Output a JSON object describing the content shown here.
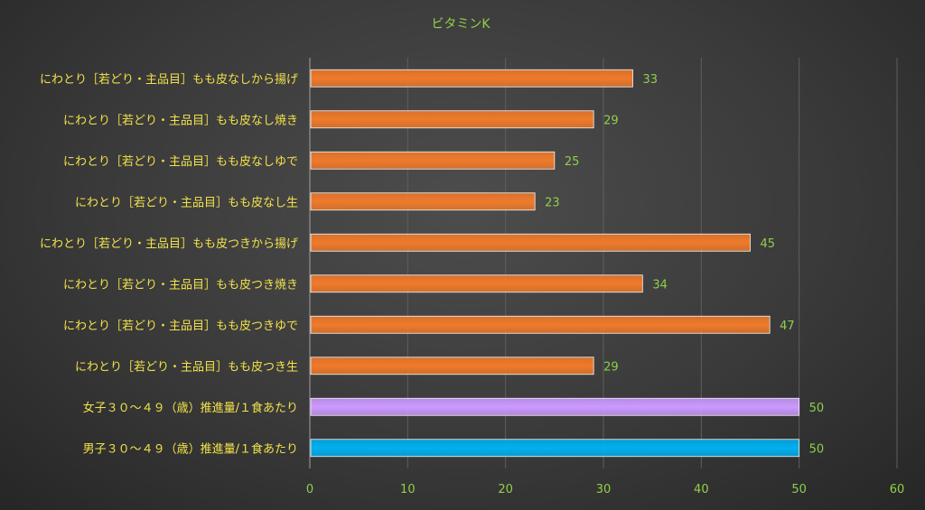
{
  "chart_data": {
    "type": "bar",
    "orientation": "horizontal",
    "title": "ビタミンK",
    "categories": [
      "にわとり［若どり・主品目］もも皮なしから揚げ",
      "にわとり［若どり・主品目］もも皮なし焼き",
      "にわとり［若どり・主品目］もも皮なしゆで",
      "にわとり［若どり・主品目］もも皮なし生",
      "にわとり［若どり・主品目］もも皮つきから揚げ",
      "にわとり［若どり・主品目］もも皮つき焼き",
      "にわとり［若どり・主品目］もも皮つきゆで",
      "にわとり［若どり・主品目］もも皮つき生",
      "女子３０～４９（歳）推進量/１食あたり",
      "男子３０～４９（歳）推進量/１食あたり"
    ],
    "values": [
      33,
      29,
      25,
      23,
      45,
      34,
      47,
      29,
      50,
      50
    ],
    "bar_colors": [
      "#f07a2a",
      "#f07a2a",
      "#f07a2a",
      "#f07a2a",
      "#f07a2a",
      "#f07a2a",
      "#f07a2a",
      "#f07a2a",
      "#cc99ff",
      "#00b0f0"
    ],
    "xlim": [
      0,
      60
    ],
    "xticks": [
      "0",
      "10",
      "20",
      "30",
      "40",
      "50",
      "60"
    ],
    "grid": "vertical",
    "data_labels": [
      "33",
      "29",
      "25",
      "23",
      "45",
      "34",
      "47",
      "29",
      "50",
      "50"
    ]
  }
}
